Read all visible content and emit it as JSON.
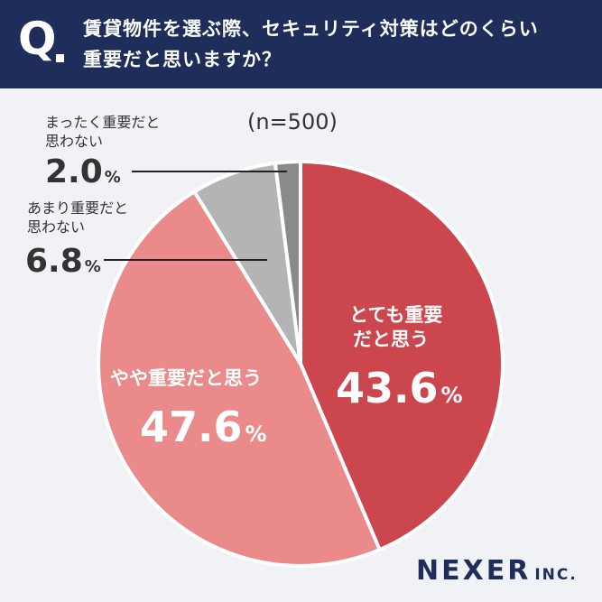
{
  "question": {
    "mark": "Q",
    "line1": "賃貸物件を選ぶ際、セキュリティ対策はどのくらい",
    "line2": "重要だと思いますか？"
  },
  "sample": "(n=500)",
  "percent_unit": "%",
  "brand": {
    "main": "NEXER",
    "suffix": "INC."
  },
  "colors": {
    "header": "#1e2d5a",
    "very_important": "#cc474d",
    "somewhat_important": "#ea8a8a",
    "not_very_important": "#b4b4b6",
    "not_at_all_important": "#8a8a8d"
  },
  "chart_data": {
    "type": "pie",
    "title": "賃貸物件を選ぶ際、セキュリティ対策はどのくらい重要だと思いますか？",
    "n": 500,
    "slices": [
      {
        "label_line1": "とても重要",
        "label_line2": "だと思う",
        "value": 43.6,
        "value_text": "43.6",
        "color": "#cc474d"
      },
      {
        "label_line1": "やや重要だと思う",
        "label_line2": "",
        "value": 47.6,
        "value_text": "47.6",
        "color": "#ea8a8a"
      },
      {
        "label_line1": "あまり重要だと",
        "label_line2": "思わない",
        "value": 6.8,
        "value_text": "6.8",
        "color": "#b4b4b6"
      },
      {
        "label_line1": "まったく重要だと",
        "label_line2": "思わない",
        "value": 2.0,
        "value_text": "2.0",
        "color": "#8a8a8d"
      }
    ]
  }
}
